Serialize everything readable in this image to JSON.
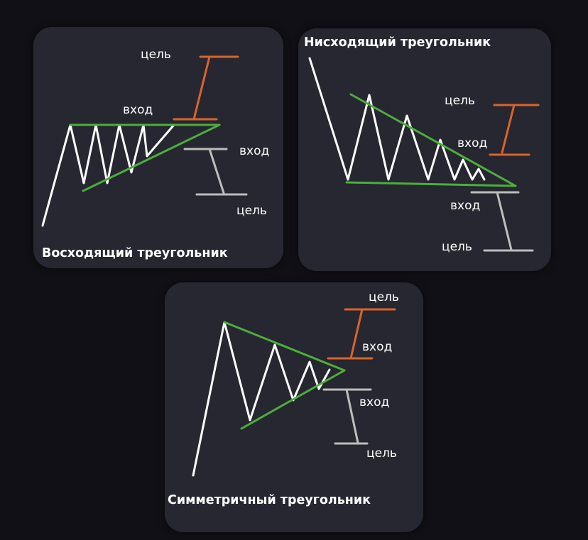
{
  "colors": {
    "background": "#111016",
    "card": "#262730",
    "price_line": "#ffffff",
    "triangle": "#4cae3b",
    "upside_target": "#d9642b",
    "downside_target": "#bdbdbd"
  },
  "ascending": {
    "title": "Восходящий треугольник",
    "target_up": "цель",
    "entry_up": "вход",
    "entry_down": "вход",
    "target_down": "цель"
  },
  "descending": {
    "title": "Нисходящий треугольник",
    "target_up": "цель",
    "entry_up": "вход",
    "entry_down": "вход",
    "target_down": "цель"
  },
  "symmetric": {
    "title": "Симметричный треугольник",
    "target_up": "цель",
    "entry_up": "вход",
    "entry_down": "вход",
    "target_down": "цель"
  }
}
